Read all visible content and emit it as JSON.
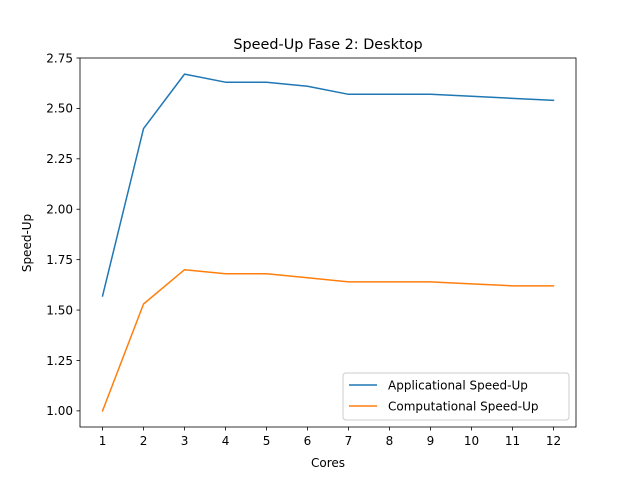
{
  "chart_data": {
    "type": "line",
    "title": "Speed-Up Fase 2: Desktop",
    "xlabel": "Cores",
    "ylabel": "Speed-Up",
    "x": [
      1,
      2,
      3,
      4,
      5,
      6,
      7,
      8,
      9,
      10,
      11,
      12
    ],
    "xticks": [
      "1",
      "2",
      "3",
      "4",
      "5",
      "6",
      "7",
      "8",
      "9",
      "10",
      "11",
      "12"
    ],
    "yticks": [
      "1.00",
      "1.25",
      "1.50",
      "1.75",
      "2.00",
      "2.25",
      "2.50",
      "2.75"
    ],
    "ylim": [
      0.92,
      2.75
    ],
    "xlim": [
      0.45,
      12.55
    ],
    "grid": false,
    "legend_position": "lower-right",
    "series": [
      {
        "name": "Applicational Speed-Up",
        "color": "#1f77b4",
        "values": [
          1.57,
          2.4,
          2.67,
          2.63,
          2.63,
          2.61,
          2.57,
          2.57,
          2.57,
          2.56,
          2.55,
          2.54
        ]
      },
      {
        "name": "Computational Speed-Up",
        "color": "#ff7f0e",
        "values": [
          1.0,
          1.53,
          1.7,
          1.68,
          1.68,
          1.66,
          1.64,
          1.64,
          1.64,
          1.63,
          1.62,
          1.62
        ]
      }
    ]
  }
}
